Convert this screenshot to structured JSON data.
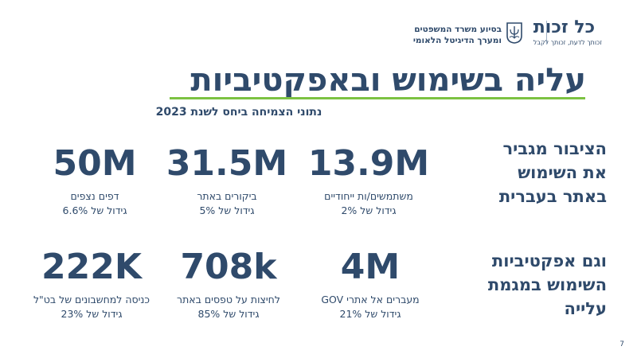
{
  "header": {
    "brand_name": "כל זכות",
    "brand_tagline": "זכותך לדעת, זכותך לקבל",
    "ministry_line1": "בסיוע משרד המשפטים",
    "ministry_line2": "ומערך הדיגיטל הלאומי"
  },
  "title": "עליה בשימוש ובאפקטיביות",
  "subtitle": "נתוני הצמיחה ביחס לשנת 2023",
  "side_labels": {
    "top": [
      "הציבור מגביר",
      "את השימוש",
      "באתר בעברית"
    ],
    "bottom": [
      "וגם אפקטיביות",
      "השימוש במגמת",
      "עלייה"
    ]
  },
  "stats": [
    {
      "value": "13.9M",
      "label": "משתמשים/ות ייחודיים",
      "growth": "גידול של 2%"
    },
    {
      "value": "31.5M",
      "label": "ביקורים באתר",
      "growth": "גידול של 5%"
    },
    {
      "value": "50M",
      "label": "דפים נצפים",
      "growth": "גידול של 6.6%"
    },
    {
      "value": "4M",
      "label": "מעברים אל אתרי GOV",
      "growth": "גידול של 21%"
    },
    {
      "value": "708k",
      "label": "לחיצות על טפסים באתר",
      "growth": "גידול של 85%"
    },
    {
      "value": "222K",
      "label": "כניסה למחשבונים של בט\"ל",
      "growth": "גידול של 23%"
    }
  ],
  "page_number": "7",
  "colors": {
    "primary": "#2f4a6b",
    "accent": "#7cc242"
  },
  "icons": {
    "emblem": "state-emblem-icon"
  }
}
